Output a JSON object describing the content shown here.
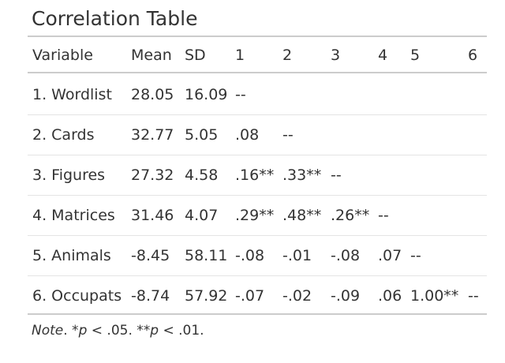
{
  "title": "Correlation Table",
  "table": {
    "header": [
      "Variable",
      "Mean",
      "SD",
      "1",
      "2",
      "3",
      "4",
      "5",
      "6"
    ],
    "rows": [
      [
        "1. Wordlist",
        "28.05",
        "16.09",
        "--"
      ],
      [
        "2. Cards",
        "32.77",
        "5.05",
        ".08",
        "--"
      ],
      [
        "3. Figures",
        "27.32",
        "4.58",
        ".16**",
        ".33**",
        "--"
      ],
      [
        "4. Matrices",
        "31.46",
        "4.07",
        ".29**",
        ".48**",
        ".26**",
        "--"
      ],
      [
        "5. Animals",
        "-8.45",
        "58.11",
        "-.08",
        "-.01",
        "-.08",
        ".07",
        "--"
      ],
      [
        "6. Occupats",
        "-8.74",
        "57.92",
        "-.07",
        "-.02",
        "-.09",
        ".06",
        "1.00**",
        "--"
      ]
    ]
  },
  "note": [
    {
      "text": "Note",
      "italic": true
    },
    {
      "text": ". *",
      "italic": false
    },
    {
      "text": "p",
      "italic": true
    },
    {
      "text": " < .05. **",
      "italic": false
    },
    {
      "text": "p",
      "italic": true
    },
    {
      "text": " < .01.",
      "italic": false
    }
  ]
}
